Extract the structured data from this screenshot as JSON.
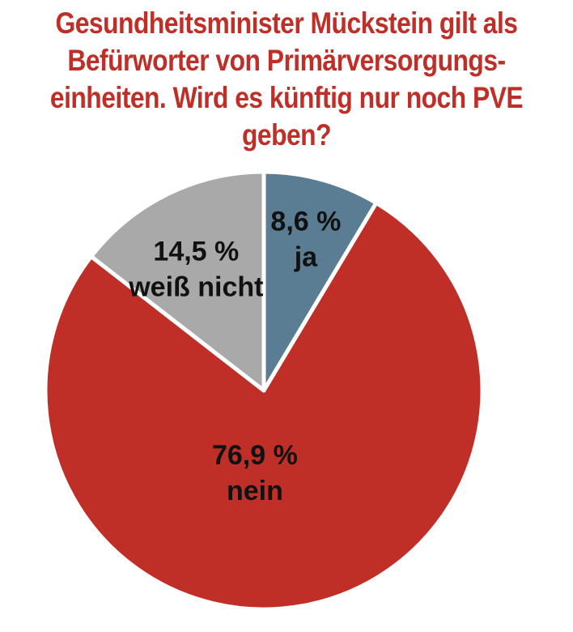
{
  "chart_data": {
    "type": "pie",
    "title_lines": [
      "Gesundheitsminister Mückstein gilt als",
      "Befürworter von Primärversorgungs-",
      "einheiten. Wird es künftig nur noch PVE",
      "geben?"
    ],
    "categories": [
      "ja",
      "nein",
      "weiß nicht"
    ],
    "values": [
      8.6,
      76.9,
      14.5
    ],
    "value_labels": [
      "8,6 %",
      "76,9 %",
      "14,5 %"
    ],
    "colors": [
      "#5b7d93",
      "#bf2f28",
      "#a9a9a9"
    ],
    "start_angle": "12 o'clock",
    "direction": "clockwise",
    "legend": "none"
  }
}
